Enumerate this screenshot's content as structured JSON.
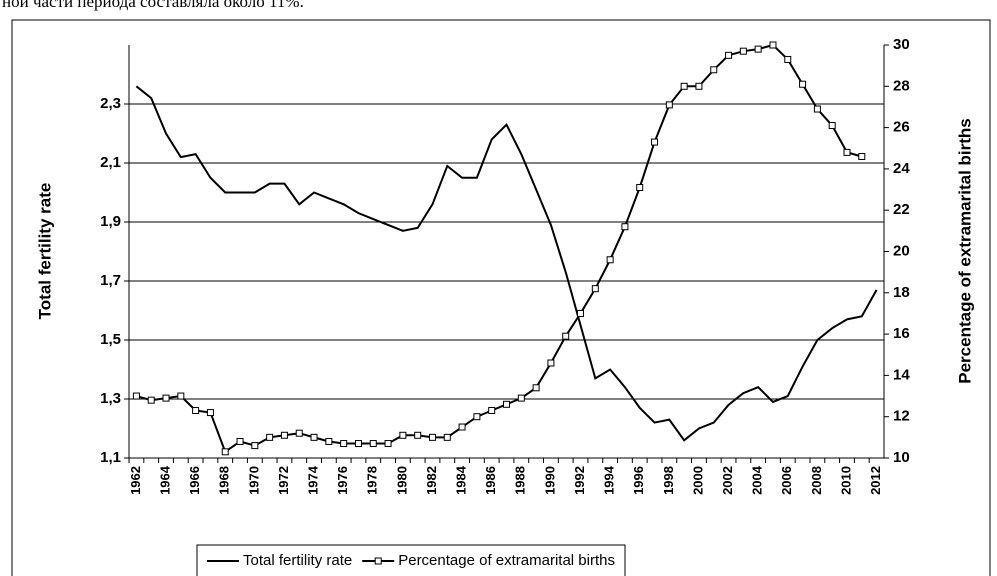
{
  "caption": "ной части периода составляла около 11%.",
  "chart_data": {
    "type": "line",
    "ylabel": "Total fertility rate",
    "y2label": "Percentage of extramarital births",
    "categories": [
      "1962",
      null,
      "1964",
      null,
      "1966",
      null,
      "1968",
      null,
      "1970",
      null,
      "1972",
      null,
      "1974",
      null,
      "1976",
      null,
      "1978",
      null,
      "1980",
      null,
      "1982",
      null,
      "1984",
      null,
      "1986",
      null,
      "1988",
      null,
      "1990",
      null,
      "1992",
      null,
      "1994",
      null,
      "1996",
      null,
      "1998",
      null,
      "2000",
      null,
      "2002",
      null,
      "2004",
      null,
      "2006",
      null,
      "2008",
      null,
      "2010",
      null,
      "2012"
    ],
    "series": [
      {
        "name": "Total fertility rate",
        "color": "#000000",
        "marker": "none",
        "values": [
          2.36,
          2.32,
          2.2,
          2.12,
          2.13,
          2.05,
          2.0,
          2.0,
          2.0,
          2.03,
          2.03,
          1.96,
          2.0,
          1.98,
          1.96,
          1.93,
          1.91,
          1.89,
          1.87,
          1.88,
          1.96,
          2.09,
          2.05,
          2.05,
          2.18,
          2.23,
          2.13,
          2.01,
          1.89,
          1.73,
          1.55,
          1.37,
          1.4,
          1.34,
          1.27,
          1.22,
          1.23,
          1.16,
          1.2,
          1.22,
          1.28,
          1.32,
          1.34,
          1.29,
          1.31,
          1.41,
          1.5,
          1.54,
          1.57,
          1.58,
          1.67
        ]
      },
      {
        "name": "Percentage of extramarital births",
        "color": "#000000",
        "marker": "square",
        "axis": "y2",
        "values": [
          13.0,
          12.8,
          12.9,
          13.0,
          12.3,
          12.2,
          10.3,
          10.8,
          10.6,
          11.0,
          11.1,
          11.2,
          11.0,
          10.8,
          10.7,
          10.7,
          10.7,
          10.7,
          11.1,
          11.1,
          11.0,
          11.0,
          11.5,
          12.0,
          12.3,
          12.6,
          12.9,
          13.4,
          14.6,
          15.9,
          17.0,
          18.2,
          19.6,
          21.2,
          23.1,
          25.3,
          27.1,
          28.0,
          28.0,
          28.8,
          29.5,
          29.7,
          29.8,
          30.0,
          29.3,
          28.1,
          26.9,
          26.1,
          24.8,
          24.6,
          null
        ]
      }
    ],
    "ylim": [
      1.1,
      2.5
    ],
    "yticks": [
      {
        "value": 1.1,
        "label": "1,1"
      },
      {
        "value": 1.3,
        "label": "1,3"
      },
      {
        "value": 1.5,
        "label": "1,5"
      },
      {
        "value": 1.7,
        "label": "1,7"
      },
      {
        "value": 1.9,
        "label": "1,9"
      },
      {
        "value": 2.1,
        "label": "2,1"
      },
      {
        "value": 2.3,
        "label": "2,3"
      }
    ],
    "y2lim": [
      10,
      30
    ],
    "y2ticks": [
      10,
      12,
      14,
      16,
      18,
      20,
      22,
      24,
      26,
      28,
      30
    ],
    "grid": true,
    "legend": "bottom"
  }
}
